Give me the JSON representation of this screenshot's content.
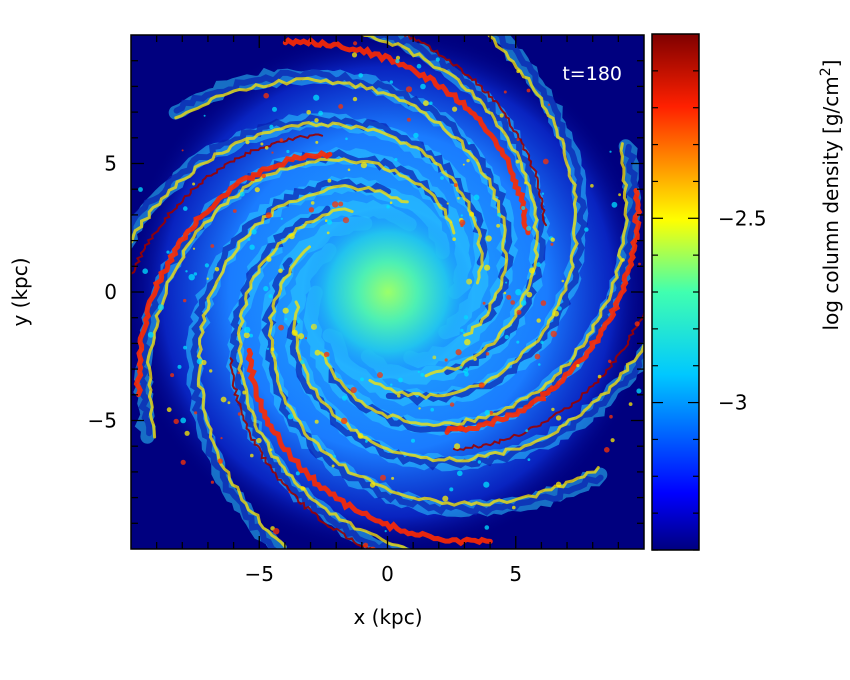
{
  "chart_data": {
    "type": "heatmap",
    "title": "",
    "xlabel": "x (kpc)",
    "ylabel": "y (kpc)",
    "xlim": [
      -10,
      10
    ],
    "ylim": [
      -10,
      10
    ],
    "x_ticks": [
      -5,
      0,
      5
    ],
    "y_ticks": [
      -5,
      0,
      5
    ],
    "x_tick_labels": [
      "−5",
      "0",
      "5"
    ],
    "y_tick_labels": [
      "−5",
      "0",
      "5"
    ],
    "annotation": "t=180",
    "colorbar": {
      "label_prefix": "log column density [g/cm",
      "label_sup": "2",
      "label_suffix": "]",
      "range": [
        -3.4,
        -2.0
      ],
      "ticks": [
        -2.5,
        -3
      ],
      "tick_labels": [
        "−2.5",
        "−3"
      ],
      "colormap": "jet"
    },
    "description_colors": {
      "background": "#00007f",
      "arm": "#ff2a00",
      "core": "#40e0b0"
    }
  }
}
